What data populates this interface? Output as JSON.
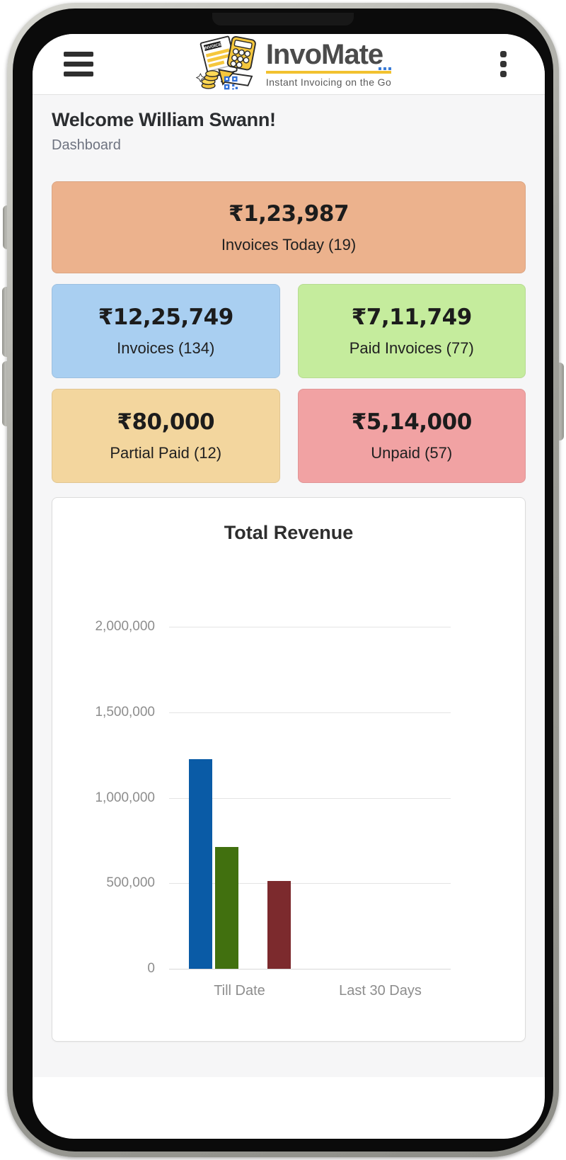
{
  "header": {
    "app_name": "InvoMate",
    "tagline": "Instant Invoicing on the Go",
    "logo_badge_text": "INVOICE"
  },
  "page": {
    "welcome": "Welcome William Swann!",
    "breadcrumb": "Dashboard"
  },
  "stats": [
    {
      "value": "₹1,23,987",
      "label": "Invoices Today (19)",
      "bg": "#ecb28d"
    },
    {
      "value": "₹12,25,749",
      "label": "Invoices (134)",
      "bg": "#a9cff1"
    },
    {
      "value": "₹7,11,749",
      "label": "Paid Invoices (77)",
      "bg": "#c5ec9d"
    },
    {
      "value": "₹80,000",
      "label": "Partial Paid (12)",
      "bg": "#f3d69e"
    },
    {
      "value": "₹5,14,000",
      "label": "Unpaid (57)",
      "bg": "#f1a2a3"
    }
  ],
  "chart_data": {
    "type": "bar",
    "title": "Total Revenue",
    "categories": [
      "Till Date",
      "Last 30 Days"
    ],
    "series": [
      {
        "name": "blue-bar",
        "color": "#0a5ba6",
        "values": [
          1225749,
          0
        ]
      },
      {
        "name": "green-bar",
        "color": "#41700f",
        "values": [
          711749,
          0
        ]
      },
      {
        "name": "maroon-bar",
        "color": "#7c2a2d",
        "values": [
          514000,
          0
        ]
      }
    ],
    "ylim": [
      0,
      2000000
    ],
    "yticks": [
      0,
      500000,
      1000000,
      1500000,
      2000000
    ],
    "ytick_labels": [
      "0",
      "500,000",
      "1,000,000",
      "1,500,000",
      "2,000,000"
    ],
    "grid": true,
    "legend": "none"
  }
}
